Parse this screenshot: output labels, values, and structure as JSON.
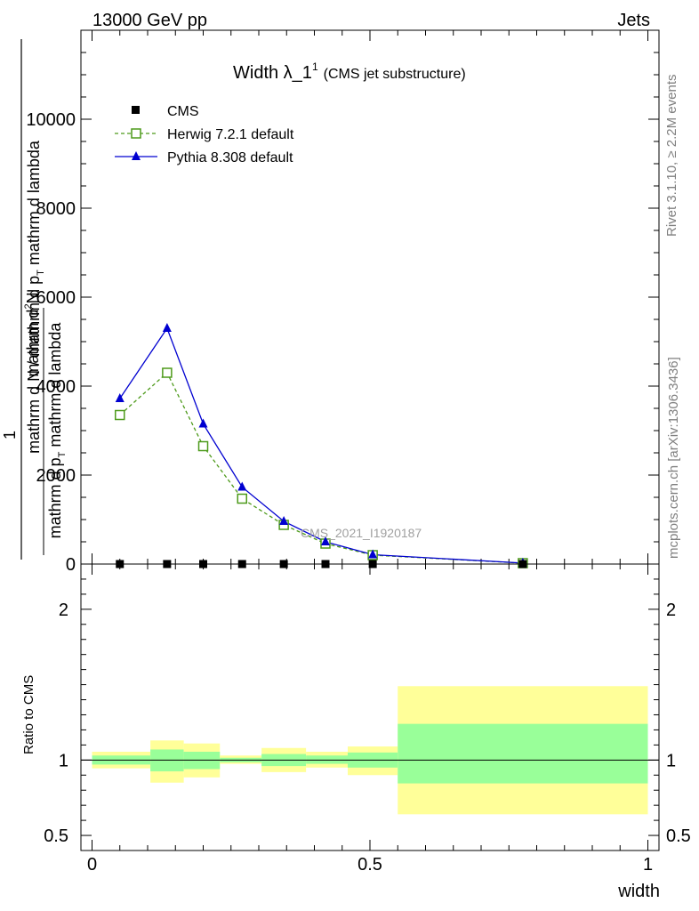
{
  "header": {
    "left": "13000 GeV pp",
    "right": "Jets"
  },
  "side_labels": {
    "rivet": "Rivet 3.1.10, ≥ 2.2M events",
    "mcplots": "mcplots.cern.ch [arXiv:1306.3436]"
  },
  "main_panel": {
    "title_main": "Width λ_1",
    "title_sup": "1",
    "title_small": "(CMS jet substructure)",
    "watermark": "CMS_2021_I1920187",
    "ylabel_numerator": "1",
    "ylabel_denominator": "mathrm d N / mathrm d p",
    "ylabel_denominator_sub": "T",
    "ylabel_denominator_tail": " mathrm d lambda",
    "ylabel_top_main": "mathrm d",
    "ylabel_top_sup": "2",
    "ylabel_top_tail": "N",
    "ylabel_bottom_a": "mathrm d p",
    "ylabel_bottom_sub": "T",
    "ylabel_bottom_b": " mathrm d lambda"
  },
  "ratio_panel": {
    "ylabel": "Ratio to CMS",
    "xlabel": "width"
  },
  "legend": [
    {
      "label": "CMS",
      "color": "#000000",
      "marker": "filled-square"
    },
    {
      "label": "Herwig 7.2.1 default",
      "color": "#4d9a1a",
      "marker": "open-square",
      "dash": true
    },
    {
      "label": "Pythia 8.308 default",
      "color": "#0000d0",
      "marker": "filled-triangle",
      "dash": false
    }
  ],
  "chart_data": [
    {
      "type": "line",
      "x": [
        0.05,
        0.135,
        0.2,
        0.27,
        0.345,
        0.42,
        0.505,
        0.775
      ],
      "bin_edges": [
        0.0,
        0.105,
        0.165,
        0.23,
        0.305,
        0.385,
        0.46,
        0.55,
        1.0
      ],
      "series": [
        {
          "name": "CMS",
          "values": [
            0,
            0,
            0,
            0,
            0,
            0,
            0,
            0
          ]
        },
        {
          "name": "Herwig 7.2.1 default",
          "values": [
            3350,
            4300,
            2650,
            1470,
            880,
            460,
            200,
            20
          ]
        },
        {
          "name": "Pythia 8.308 default",
          "values": [
            3720,
            5300,
            3150,
            1730,
            960,
            500,
            210,
            22
          ]
        }
      ],
      "xlim": [
        -0.02,
        1.02
      ],
      "ylim": [
        0,
        12000
      ],
      "yticks": [
        0,
        2000,
        4000,
        6000,
        8000,
        10000
      ],
      "ytick_labels": [
        "0",
        "2000",
        "4000",
        "6000",
        "8000",
        "10000"
      ]
    },
    {
      "type": "area",
      "bin_edges": [
        0.0,
        0.105,
        0.165,
        0.23,
        0.305,
        0.385,
        0.46,
        0.55,
        1.0
      ],
      "bands": {
        "yellow": {
          "lo": [
            0.945,
            0.85,
            0.885,
            0.975,
            0.92,
            0.95,
            0.9,
            0.64
          ],
          "hi": [
            1.055,
            1.13,
            1.11,
            1.03,
            1.08,
            1.055,
            1.09,
            1.49
          ]
        },
        "green": {
          "lo": [
            0.97,
            0.925,
            0.94,
            0.985,
            0.96,
            0.975,
            0.95,
            0.845
          ],
          "hi": [
            1.03,
            1.07,
            1.055,
            1.015,
            1.04,
            1.03,
            1.05,
            1.24
          ]
        }
      },
      "reference": 1.0,
      "xlim": [
        -0.02,
        1.02
      ],
      "ylim": [
        0.4,
        2.3
      ],
      "yticks": [
        0.5,
        1,
        2
      ],
      "ytick_labels": [
        "0.5",
        "1",
        "2"
      ],
      "xticks": [
        0,
        0.5,
        1
      ],
      "xtick_labels": [
        "0",
        "0.5",
        "1"
      ]
    }
  ]
}
